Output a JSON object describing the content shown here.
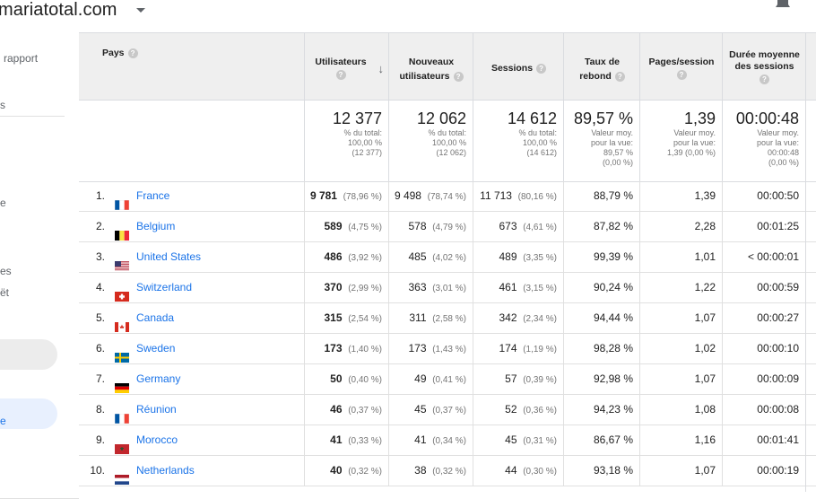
{
  "header": {
    "site_title": "mariatotal.com"
  },
  "sidebar": {
    "items": [
      {
        "label": "rapport",
        "top": 22,
        "left": 4
      },
      {
        "label": "s",
        "top": 74,
        "left": 0
      },
      {
        "label": "e",
        "top": 183,
        "left": 0
      },
      {
        "label": "es",
        "top": 259,
        "left": 0
      },
      {
        "label": "ët",
        "top": 283,
        "left": 0
      }
    ],
    "active_label": "e"
  },
  "table": {
    "columns": {
      "country": "Pays",
      "users": "Utilisateurs",
      "new_users_1": "Nouveaux",
      "new_users_2": "utilisateurs",
      "sessions": "Sessions",
      "bounce_1": "Taux de",
      "bounce_2": "rebond",
      "pages": "Pages/session",
      "duration_1": "Durée moyenne",
      "duration_2": "des sessions"
    },
    "summary": {
      "users": {
        "big": "12 377",
        "small": "% du total:\n100,00 %\n(12 377)"
      },
      "new_users": {
        "big": "12 062",
        "small": "% du total:\n100,00 %\n(12 062)"
      },
      "sessions": {
        "big": "14 612",
        "small": "% du total:\n100,00 %\n(14 612)"
      },
      "bounce": {
        "big": "89,57 %",
        "small": "Valeur moy.\npour la vue:\n89,57 %\n(0,00 %)"
      },
      "pages": {
        "big": "1,39",
        "small": "Valeur moy.\npour la vue:\n1,39 (0,00 %)"
      },
      "duration": {
        "big": "00:00:48",
        "small": "Valeur moy.\npour la vue:\n00:00:48\n(0,00 %)"
      }
    },
    "rows": [
      {
        "rank": "1.",
        "country": "France",
        "flag": "fr",
        "users": "9 781",
        "users_pct": "(78,96 %)",
        "new_users": "9 498",
        "new_pct": "(78,74 %)",
        "sessions": "11 713",
        "sessions_pct": "(80,16 %)",
        "bounce": "88,79 %",
        "pages": "1,39",
        "duration": "00:00:50"
      },
      {
        "rank": "2.",
        "country": "Belgium",
        "flag": "be",
        "users": "589",
        "users_pct": "(4,75 %)",
        "new_users": "578",
        "new_pct": "(4,79 %)",
        "sessions": "673",
        "sessions_pct": "(4,61 %)",
        "bounce": "87,82 %",
        "pages": "2,28",
        "duration": "00:01:25"
      },
      {
        "rank": "3.",
        "country": "United States",
        "flag": "us",
        "users": "486",
        "users_pct": "(3,92 %)",
        "new_users": "485",
        "new_pct": "(4,02 %)",
        "sessions": "489",
        "sessions_pct": "(3,35 %)",
        "bounce": "99,39 %",
        "pages": "1,01",
        "duration": "< 00:00:01"
      },
      {
        "rank": "4.",
        "country": "Switzerland",
        "flag": "ch",
        "users": "370",
        "users_pct": "(2,99 %)",
        "new_users": "363",
        "new_pct": "(3,01 %)",
        "sessions": "461",
        "sessions_pct": "(3,15 %)",
        "bounce": "90,24 %",
        "pages": "1,22",
        "duration": "00:00:59"
      },
      {
        "rank": "5.",
        "country": "Canada",
        "flag": "ca",
        "users": "315",
        "users_pct": "(2,54 %)",
        "new_users": "311",
        "new_pct": "(2,58 %)",
        "sessions": "342",
        "sessions_pct": "(2,34 %)",
        "bounce": "94,44 %",
        "pages": "1,07",
        "duration": "00:00:27"
      },
      {
        "rank": "6.",
        "country": "Sweden",
        "flag": "se",
        "users": "173",
        "users_pct": "(1,40 %)",
        "new_users": "173",
        "new_pct": "(1,43 %)",
        "sessions": "174",
        "sessions_pct": "(1,19 %)",
        "bounce": "98,28 %",
        "pages": "1,02",
        "duration": "00:00:10"
      },
      {
        "rank": "7.",
        "country": "Germany",
        "flag": "de",
        "users": "50",
        "users_pct": "(0,40 %)",
        "new_users": "49",
        "new_pct": "(0,41 %)",
        "sessions": "57",
        "sessions_pct": "(0,39 %)",
        "bounce": "92,98 %",
        "pages": "1,07",
        "duration": "00:00:09"
      },
      {
        "rank": "8.",
        "country": "Réunion",
        "flag": "fr",
        "users": "46",
        "users_pct": "(0,37 %)",
        "new_users": "45",
        "new_pct": "(0,37 %)",
        "sessions": "52",
        "sessions_pct": "(0,36 %)",
        "bounce": "94,23 %",
        "pages": "1,08",
        "duration": "00:00:08"
      },
      {
        "rank": "9.",
        "country": "Morocco",
        "flag": "ma",
        "users": "41",
        "users_pct": "(0,33 %)",
        "new_users": "41",
        "new_pct": "(0,34 %)",
        "sessions": "45",
        "sessions_pct": "(0,31 %)",
        "bounce": "86,67 %",
        "pages": "1,16",
        "duration": "00:01:41"
      },
      {
        "rank": "10.",
        "country": "Netherlands",
        "flag": "nl",
        "users": "40",
        "users_pct": "(0,32 %)",
        "new_users": "38",
        "new_pct": "(0,32 %)",
        "sessions": "44",
        "sessions_pct": "(0,30 %)",
        "bounce": "93,18 %",
        "pages": "1,07",
        "duration": "00:00:19"
      }
    ]
  },
  "colors": {
    "link": "#1a73e8",
    "header_bg": "#efefef",
    "border": "#dadce0"
  }
}
